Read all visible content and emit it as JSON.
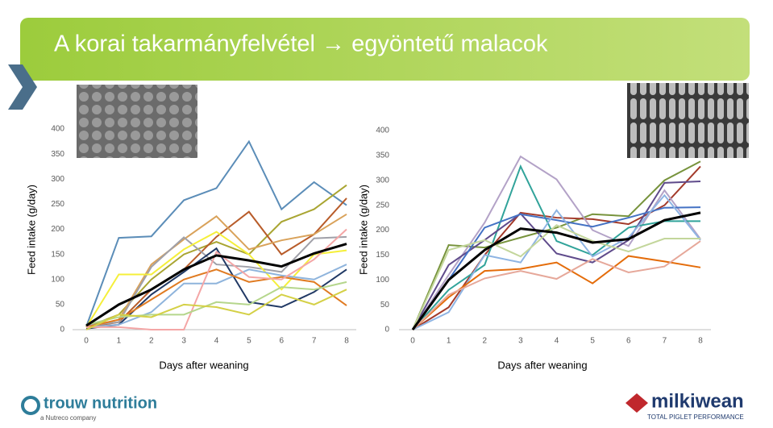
{
  "header": {
    "title": "A korai takarmányfelvétel → egyöntetű malacok"
  },
  "logos": {
    "left": "trouw nutrition",
    "left_sub": "a Nutreco company",
    "right": "milkiwean",
    "right_sub": "TOTAL PIGLET PERFORMANCE"
  },
  "chart_data": [
    {
      "type": "line",
      "y_label": "Feed intake (g/day)",
      "x_label": "Days after weaning",
      "x": [
        0,
        1,
        2,
        3,
        4,
        5,
        6,
        7,
        8
      ],
      "xlim": [
        0,
        8
      ],
      "xticks": [
        0,
        1,
        2,
        3,
        4,
        5,
        6,
        7,
        8
      ],
      "ylim": [
        0,
        400
      ],
      "yticks": [
        0,
        50,
        100,
        150,
        200,
        250,
        300,
        350,
        400
      ],
      "grid": false,
      "series": [
        {
          "color": "#5b8db8",
          "values": [
            6,
            183,
            186,
            258,
            282,
            375,
            240,
            294,
            248
          ]
        },
        {
          "color": "#a9a532",
          "values": [
            5,
            30,
            100,
            150,
            175,
            150,
            215,
            240,
            288
          ]
        },
        {
          "color": "#b85c2a",
          "values": [
            5,
            15,
            80,
            120,
            185,
            235,
            150,
            190,
            262
          ]
        },
        {
          "color": "#d9a25a",
          "values": [
            5,
            20,
            130,
            180,
            226,
            160,
            178,
            190,
            230
          ]
        },
        {
          "color": "#a0a0a8",
          "values": [
            8,
            15,
            125,
            184,
            130,
            125,
            115,
            182,
            185
          ]
        },
        {
          "color": "#f5ef3a",
          "values": [
            5,
            110,
            110,
            160,
            195,
            150,
            80,
            150,
            158
          ]
        },
        {
          "color": "#203864",
          "values": [
            2,
            10,
            70,
            115,
            162,
            55,
            45,
            75,
            120
          ]
        },
        {
          "color": "#8fb4dc",
          "values": [
            5,
            10,
            35,
            92,
            92,
            120,
            108,
            100,
            130
          ]
        },
        {
          "color": "#e07b22",
          "values": [
            5,
            20,
            60,
            100,
            120,
            95,
            105,
            95,
            48
          ]
        },
        {
          "color": "#f4a6a6",
          "values": [
            5,
            5,
            0,
            0,
            155,
            105,
            100,
            140,
            200
          ]
        },
        {
          "color": "#b5d68c",
          "values": [
            10,
            25,
            30,
            30,
            55,
            50,
            85,
            80,
            95
          ]
        },
        {
          "color": "#d4d046",
          "values": [
            0,
            30,
            25,
            50,
            45,
            30,
            70,
            50,
            80
          ]
        },
        {
          "color": "#000000",
          "values": [
            8,
            50,
            80,
            120,
            148,
            138,
            126,
            152,
            171
          ]
        }
      ]
    },
    {
      "type": "line",
      "y_label": "Feed intake (g/day)",
      "x_label": "Days after weaning",
      "x": [
        0,
        1,
        2,
        3,
        4,
        5,
        6,
        7,
        8
      ],
      "xlim": [
        0,
        8
      ],
      "xticks": [
        0,
        1,
        2,
        3,
        4,
        5,
        6,
        7,
        8
      ],
      "ylim": [
        0,
        400
      ],
      "yticks": [
        0,
        50,
        100,
        150,
        200,
        250,
        300,
        350,
        400
      ],
      "grid": false,
      "series": [
        {
          "color": "#77933c",
          "values": [
            0,
            170,
            165,
            185,
            205,
            232,
            228,
            300,
            338
          ]
        },
        {
          "color": "#a33a2a",
          "values": [
            0,
            45,
            150,
            235,
            225,
            222,
            212,
            250,
            328
          ]
        },
        {
          "color": "#b3a2c7",
          "values": [
            0,
            110,
            215,
            348,
            302,
            200,
            168,
            280,
            182
          ]
        },
        {
          "color": "#31a39a",
          "values": [
            0,
            80,
            130,
            328,
            178,
            150,
            205,
            218,
            218
          ]
        },
        {
          "color": "#5f4b8b",
          "values": [
            0,
            130,
            180,
            233,
            153,
            135,
            180,
            295,
            298
          ]
        },
        {
          "color": "#4472c4",
          "values": [
            0,
            100,
            205,
            232,
            220,
            207,
            225,
            245,
            246
          ]
        },
        {
          "color": "#8eb4e3",
          "values": [
            0,
            35,
            150,
            135,
            240,
            147,
            185,
            270,
            180
          ]
        },
        {
          "color": "#c3d69b",
          "values": [
            0,
            160,
            180,
            147,
            210,
            178,
            157,
            183,
            183
          ]
        },
        {
          "color": "#e46c0a",
          "values": [
            0,
            65,
            118,
            122,
            135,
            93,
            148,
            137,
            125
          ]
        },
        {
          "color": "#e6a89a",
          "values": [
            0,
            70,
            103,
            118,
            102,
            142,
            115,
            127,
            178
          ]
        },
        {
          "color": "#000000",
          "values": [
            0,
            100,
            160,
            203,
            195,
            175,
            182,
            220,
            235
          ]
        }
      ]
    }
  ]
}
